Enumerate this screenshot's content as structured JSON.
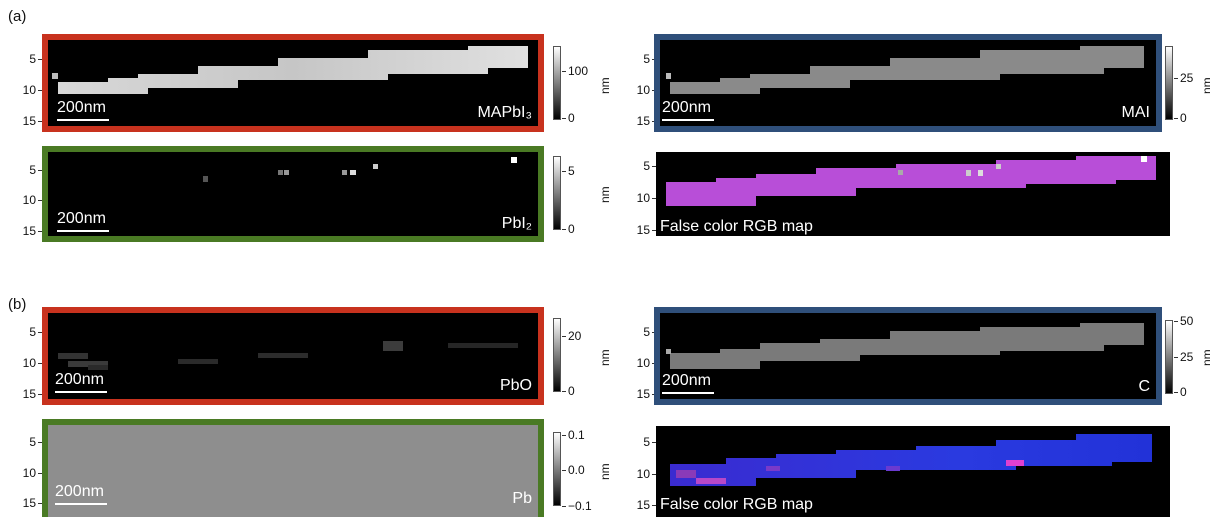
{
  "section_labels": {
    "a": "(a)",
    "b": "(b)"
  },
  "y_ticks": [
    "5",
    "10",
    "15"
  ],
  "scale_bar": "200nm",
  "unit": "nm",
  "rgb_map_label": "False color RGB map",
  "panels": {
    "mapbi3": {
      "name": "MAPbI₃",
      "cbar_ticks": [
        "100",
        "0"
      ],
      "color": "#c8321e"
    },
    "mai": {
      "name": "MAI",
      "cbar_ticks": [
        "25",
        "0"
      ],
      "color": "#2f4f7a"
    },
    "pbi2": {
      "name": "PbI₂",
      "cbar_ticks": [
        "5",
        "0"
      ],
      "color": "#4a7a24"
    },
    "pbo": {
      "name": "PbO",
      "cbar_ticks": [
        "20",
        "0"
      ],
      "color": "#c8321e"
    },
    "c": {
      "name": "C",
      "cbar_ticks": [
        "50",
        "25",
        "0"
      ],
      "color": "#2f4f7a"
    },
    "pb": {
      "name": "Pb",
      "cbar_ticks": [
        "0.1",
        "0.0",
        "−0.1"
      ],
      "color": "#4a7a24"
    }
  }
}
